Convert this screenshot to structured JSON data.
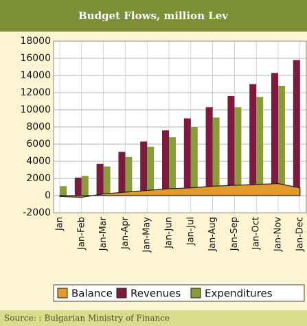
{
  "chart_data": {
    "type": "bar",
    "title": "Budget Flows, million Lev",
    "categories": [
      "Jan",
      "Jan-Feb",
      "Jan-Mar",
      "Jan-Apr",
      "Jan-May",
      "Jan-Jun",
      "Jan-Jul",
      "Jan-Aug",
      "Jan-Sep",
      "Jan-Oct",
      "Jan-Nov",
      "Jan-Dec"
    ],
    "series": [
      {
        "name": "Balance",
        "type": "area",
        "color": "#e39a2c",
        "values": [
          -100,
          -200,
          200,
          400,
          600,
          800,
          900,
          1100,
          1200,
          1300,
          1400,
          900
        ]
      },
      {
        "name": "Revenues",
        "type": "bar",
        "color": "#7b1c3e",
        "values": [
          null,
          2100,
          3700,
          5100,
          6300,
          7600,
          9000,
          10300,
          11600,
          13000,
          14300,
          15800
        ]
      },
      {
        "name": "Expenditures",
        "type": "bar",
        "color": "#8c9a3a",
        "values": [
          1100,
          2300,
          3400,
          4500,
          5700,
          6800,
          8000,
          9100,
          10300,
          11500,
          12800,
          null
        ]
      }
    ],
    "ylim": [
      -2000,
      18000
    ],
    "yticks": [
      -2000,
      0,
      2000,
      4000,
      6000,
      8000,
      10000,
      12000,
      14000,
      16000,
      18000
    ],
    "grid": true,
    "legend": "bottom",
    "source": "Source: : Bulgarian Ministry of Finance"
  }
}
